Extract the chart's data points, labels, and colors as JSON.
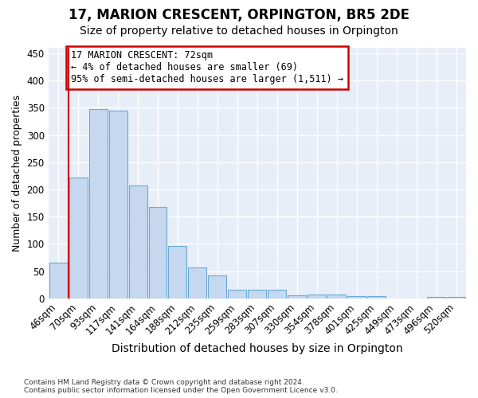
{
  "title": "17, MARION CRESCENT, ORPINGTON, BR5 2DE",
  "subtitle": "Size of property relative to detached houses in Orpington",
  "xlabel": "Distribution of detached houses by size in Orpington",
  "ylabel": "Number of detached properties",
  "categories": [
    "46sqm",
    "70sqm",
    "93sqm",
    "117sqm",
    "141sqm",
    "164sqm",
    "188sqm",
    "212sqm",
    "235sqm",
    "259sqm",
    "283sqm",
    "307sqm",
    "330sqm",
    "354sqm",
    "378sqm",
    "401sqm",
    "425sqm",
    "449sqm",
    "473sqm",
    "496sqm",
    "520sqm"
  ],
  "values": [
    65,
    222,
    347,
    344,
    207,
    168,
    97,
    57,
    42,
    16,
    16,
    16,
    6,
    7,
    7,
    5,
    5,
    0,
    0,
    3,
    3
  ],
  "bar_color": "#c5d8f0",
  "bar_edge_color": "#6aaad4",
  "ylim": [
    0,
    460
  ],
  "yticks": [
    0,
    50,
    100,
    150,
    200,
    250,
    300,
    350,
    400,
    450
  ],
  "red_line_index": 1,
  "annotation_line1": "17 MARION CRESCENT: 72sqm",
  "annotation_line2": "← 4% of detached houses are smaller (69)",
  "annotation_line3": "95% of semi-detached houses are larger (1,511) →",
  "annotation_box_color": "#cc0000",
  "footer_line1": "Contains HM Land Registry data © Crown copyright and database right 2024.",
  "footer_line2": "Contains public sector information licensed under the Open Government Licence v3.0.",
  "bg_color": "#e8eef8",
  "title_fontsize": 12,
  "subtitle_fontsize": 10,
  "tick_fontsize": 8.5,
  "ylabel_fontsize": 9,
  "xlabel_fontsize": 10
}
